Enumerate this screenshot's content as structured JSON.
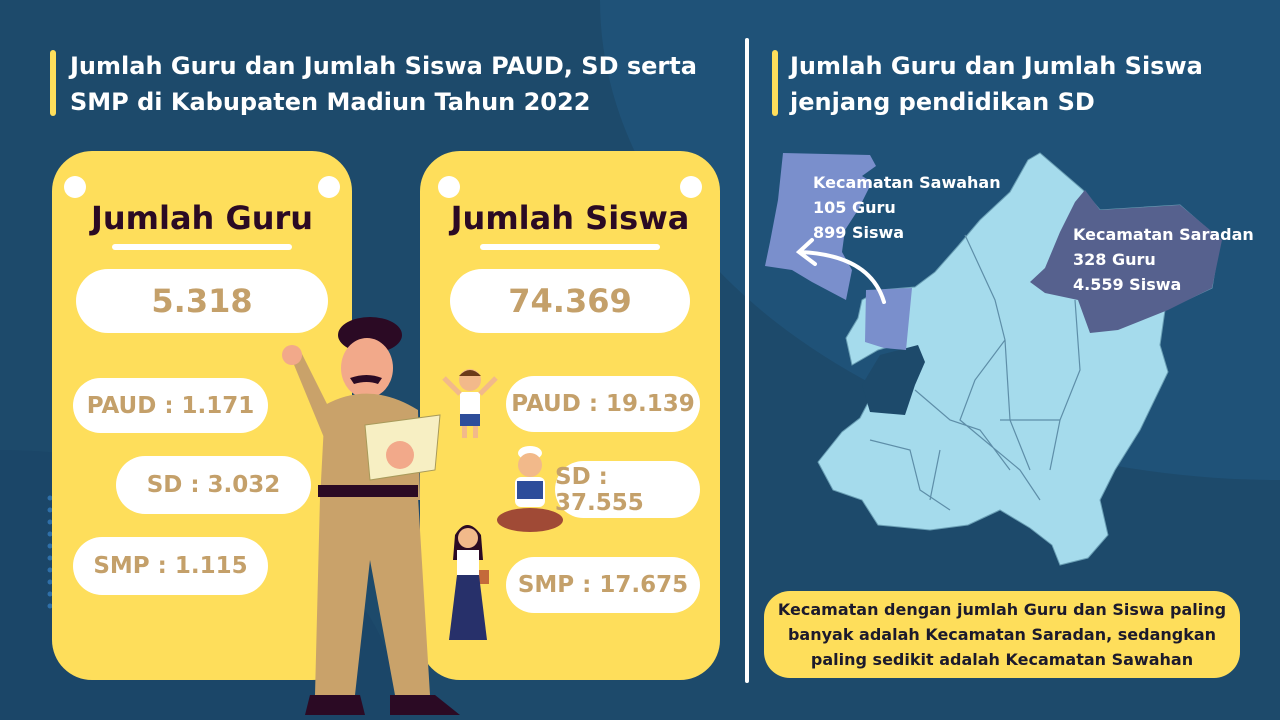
{
  "left_section": {
    "title_line1": "Jumlah Guru dan Jumlah Siswa PAUD, SD serta",
    "title_line2": "SMP di Kabupaten Madiun Tahun 2022"
  },
  "guru_card": {
    "heading": "Jumlah Guru",
    "total": "5.318",
    "paud": "PAUD : 1.171",
    "sd": "SD : 3.032",
    "smp": "SMP : 1.115"
  },
  "siswa_card": {
    "heading": "Jumlah Siswa",
    "total": "74.369",
    "paud": "PAUD : 19.139",
    "sd": "SD : 37.555",
    "smp": "SMP : 17.675"
  },
  "right_section": {
    "title_line1": "Jumlah Guru dan Jumlah Siswa",
    "title_line2": "jenjang pendidikan SD"
  },
  "map": {
    "sawahan": {
      "name": "Kecamatan Sawahan",
      "guru": "105 Guru",
      "siswa": "899 Siswa"
    },
    "saradan": {
      "name": "Kecamatan Saradan",
      "guru": "328 Guru",
      "siswa": "4.559 Siswa"
    },
    "colors": {
      "base": "#a5dbec",
      "sawahan": "#7a8fcc",
      "saradan": "#56618e"
    }
  },
  "note": "Kecamatan dengan jumlah Guru dan Siswa paling banyak adalah Kecamatan Saradan, sedangkan paling sedikit adalah Kecamatan Sawahan",
  "colors": {
    "background": "#1d4a6b",
    "card": "#fede5b",
    "number": "#c4a06a",
    "heading": "#2b0a24"
  }
}
